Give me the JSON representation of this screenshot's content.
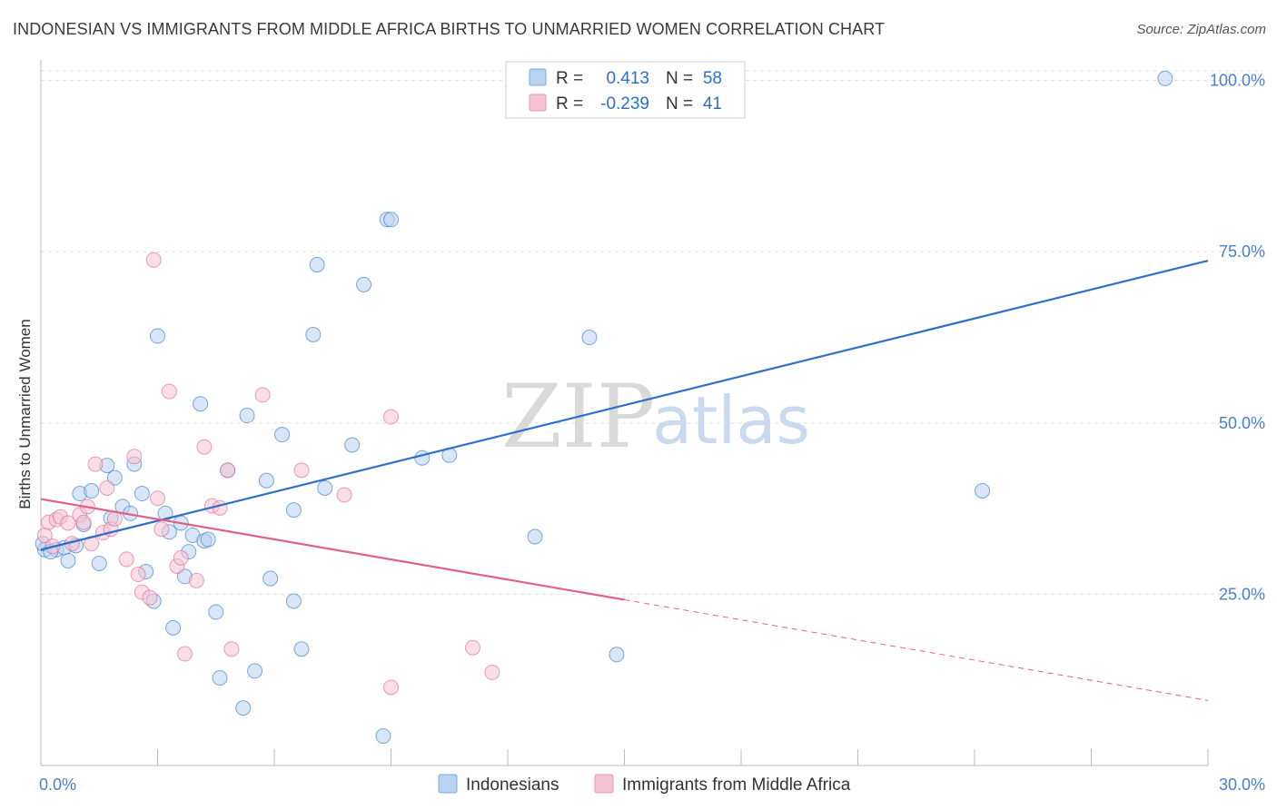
{
  "header": {
    "title": "INDONESIAN VS IMMIGRANTS FROM MIDDLE AFRICA BIRTHS TO UNMARRIED WOMEN CORRELATION CHART",
    "source": "Source: ZipAtlas.com"
  },
  "colors": {
    "blue": "#2f6fcb",
    "blue_fill": "#b8d2f1",
    "pink": "#e0608a",
    "pink_fill": "#f6c3d4",
    "grid": "#dddddd",
    "tick": "#4a7fd0"
  },
  "legend": {
    "rows": [
      {
        "r_label": "R =",
        "r_value": "0.413",
        "n_label": "N =",
        "n_value": "58"
      },
      {
        "r_label": "R =",
        "r_value": "-0.239",
        "n_label": "N =",
        "n_value": "41"
      }
    ]
  },
  "watermark": {
    "zip": "ZIP",
    "atlas": "atlas"
  },
  "chart_data": {
    "type": "scatter",
    "title": "INDONESIAN VS IMMIGRANTS FROM MIDDLE AFRICA BIRTHS TO UNMARRIED WOMEN CORRELATION CHART",
    "xlabel": "",
    "ylabel": "Births to Unmarried Women",
    "xlim": [
      0,
      30
    ],
    "ylim": [
      0,
      103
    ],
    "x_tick_labels": [
      "0.0%",
      "30.0%"
    ],
    "y_ticks": [
      25,
      50,
      75,
      100
    ],
    "y_tick_labels": [
      "25.0%",
      "50.0%",
      "75.0%",
      "100.0%"
    ],
    "series": [
      {
        "name": "Indonesians",
        "color": "#2f6fcb",
        "fill": "#b8d2f1",
        "trend": {
          "x": [
            0,
            30
          ],
          "y": [
            31.5,
            73.7
          ],
          "dashed_from": null
        },
        "points": [
          [
            0.1,
            31.5
          ],
          [
            0.4,
            31.5
          ],
          [
            0.6,
            31.8
          ],
          [
            0.7,
            29.9
          ],
          [
            0.9,
            32.1
          ],
          [
            1.0,
            39.7
          ],
          [
            1.1,
            35.2
          ],
          [
            1.3,
            40.1
          ],
          [
            1.5,
            29.5
          ],
          [
            1.7,
            43.8
          ],
          [
            1.8,
            36.1
          ],
          [
            1.9,
            42.0
          ],
          [
            2.1,
            37.8
          ],
          [
            2.3,
            36.8
          ],
          [
            2.4,
            44.0
          ],
          [
            2.6,
            39.7
          ],
          [
            2.7,
            28.3
          ],
          [
            2.9,
            24.0
          ],
          [
            3.0,
            62.7
          ],
          [
            3.2,
            36.8
          ],
          [
            3.3,
            34.1
          ],
          [
            3.4,
            20.1
          ],
          [
            3.6,
            35.4
          ],
          [
            3.7,
            27.6
          ],
          [
            3.8,
            31.2
          ],
          [
            3.9,
            33.6
          ],
          [
            4.1,
            52.8
          ],
          [
            4.2,
            32.8
          ],
          [
            4.3,
            33.0
          ],
          [
            4.5,
            22.4
          ],
          [
            4.6,
            12.8
          ],
          [
            4.8,
            43.1
          ],
          [
            5.2,
            8.4
          ],
          [
            5.3,
            51.1
          ],
          [
            5.5,
            13.8
          ],
          [
            5.8,
            41.6
          ],
          [
            5.9,
            27.3
          ],
          [
            6.2,
            48.3
          ],
          [
            6.5,
            37.3
          ],
          [
            6.5,
            24.0
          ],
          [
            6.7,
            17.0
          ],
          [
            7.0,
            62.9
          ],
          [
            7.1,
            73.1
          ],
          [
            7.3,
            40.5
          ],
          [
            8.0,
            46.8
          ],
          [
            8.3,
            70.2
          ],
          [
            8.8,
            4.3
          ],
          [
            8.9,
            79.7
          ],
          [
            9.0,
            79.7
          ],
          [
            9.8,
            44.9
          ],
          [
            10.5,
            45.3
          ],
          [
            12.7,
            33.4
          ],
          [
            14.1,
            62.5
          ],
          [
            14.8,
            16.2
          ],
          [
            24.2,
            40.1
          ],
          [
            28.9,
            100.3
          ],
          [
            0.05,
            32.4
          ],
          [
            0.25,
            31.2
          ]
        ]
      },
      {
        "name": "Immigrants from Middle Africa",
        "color": "#e0608a",
        "fill": "#f6c3d4",
        "trend": {
          "x": [
            0,
            30
          ],
          "y": [
            38.9,
            9.5
          ],
          "dashed_from": 15.0
        },
        "points": [
          [
            0.1,
            33.6
          ],
          [
            0.2,
            35.5
          ],
          [
            0.3,
            32.0
          ],
          [
            0.4,
            35.9
          ],
          [
            0.5,
            36.3
          ],
          [
            0.7,
            35.4
          ],
          [
            0.8,
            32.4
          ],
          [
            1.0,
            36.6
          ],
          [
            1.1,
            35.5
          ],
          [
            1.2,
            37.8
          ],
          [
            1.3,
            32.4
          ],
          [
            1.4,
            44.0
          ],
          [
            1.6,
            34.0
          ],
          [
            1.7,
            40.5
          ],
          [
            1.8,
            34.5
          ],
          [
            1.9,
            36.0
          ],
          [
            2.2,
            30.1
          ],
          [
            2.4,
            45.1
          ],
          [
            2.5,
            27.9
          ],
          [
            2.6,
            25.3
          ],
          [
            2.8,
            24.5
          ],
          [
            2.9,
            73.8
          ],
          [
            3.0,
            39.0
          ],
          [
            3.1,
            34.5
          ],
          [
            3.3,
            54.6
          ],
          [
            3.5,
            29.1
          ],
          [
            3.6,
            30.3
          ],
          [
            3.7,
            16.3
          ],
          [
            4.0,
            27.0
          ],
          [
            4.2,
            46.5
          ],
          [
            4.4,
            37.9
          ],
          [
            4.6,
            37.6
          ],
          [
            4.8,
            43.1
          ],
          [
            4.9,
            17.0
          ],
          [
            5.7,
            54.1
          ],
          [
            6.7,
            43.1
          ],
          [
            7.8,
            39.5
          ],
          [
            9.0,
            50.9
          ],
          [
            9.0,
            11.4
          ],
          [
            11.1,
            17.2
          ],
          [
            11.6,
            13.6
          ]
        ]
      }
    ]
  },
  "bottom_legend": {
    "items": [
      {
        "label": "Indonesians"
      },
      {
        "label": "Immigrants from Middle Africa"
      }
    ]
  }
}
